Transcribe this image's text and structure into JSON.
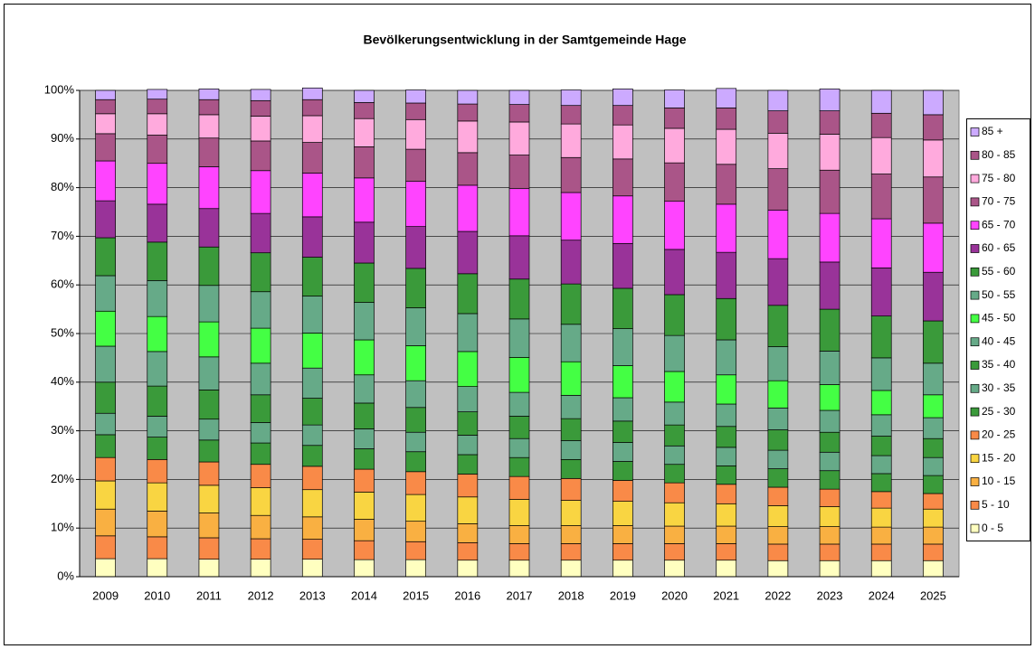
{
  "chart_data": {
    "type": "stacked_bar_percent",
    "title": "Bevölkerungsentwicklung in der Samtgemeinde Hage",
    "categories": [
      "2009",
      "2010",
      "2011",
      "2012",
      "2013",
      "2014",
      "2015",
      "2016",
      "2017",
      "2018",
      "2019",
      "2020",
      "2021",
      "2022",
      "2023",
      "2024",
      "2025"
    ],
    "ylim": [
      0,
      100
    ],
    "yticks": [
      {
        "value": 0,
        "label": "0%"
      },
      {
        "value": 10,
        "label": "10%"
      },
      {
        "value": 20,
        "label": "20%"
      },
      {
        "value": 30,
        "label": "30%"
      },
      {
        "value": 40,
        "label": "40%"
      },
      {
        "value": 50,
        "label": "50%"
      },
      {
        "value": 60,
        "label": "60%"
      },
      {
        "value": 70,
        "label": "70%"
      },
      {
        "value": 80,
        "label": "80%"
      },
      {
        "value": 90,
        "label": "90%"
      },
      {
        "value": 100,
        "label": "100%"
      }
    ],
    "grid": true,
    "legend": "right",
    "series": [
      {
        "name": "0 - 5",
        "color": "#ffffc0",
        "values": [
          3.7,
          3.7,
          3.6,
          3.6,
          3.6,
          3.5,
          3.5,
          3.4,
          3.4,
          3.4,
          3.4,
          3.4,
          3.4,
          3.3,
          3.3,
          3.3,
          3.3
        ]
      },
      {
        "name": "5 - 10",
        "color": "#f98a48",
        "values": [
          4.7,
          4.5,
          4.4,
          4.2,
          4.1,
          3.9,
          3.7,
          3.6,
          3.4,
          3.4,
          3.4,
          3.4,
          3.4,
          3.4,
          3.4,
          3.4,
          3.4
        ]
      },
      {
        "name": "10 - 15",
        "color": "#f9b042",
        "values": [
          5.5,
          5.3,
          5.1,
          4.8,
          4.6,
          4.4,
          4.2,
          3.9,
          3.7,
          3.7,
          3.7,
          3.6,
          3.6,
          3.6,
          3.6,
          3.5,
          3.5
        ]
      },
      {
        "name": "15 - 20",
        "color": "#f9d542",
        "values": [
          5.8,
          5.8,
          5.7,
          5.7,
          5.6,
          5.6,
          5.5,
          5.5,
          5.4,
          5.2,
          5.0,
          4.8,
          4.6,
          4.3,
          4.1,
          3.9,
          3.7
        ]
      },
      {
        "name": "20 - 25",
        "color": "#f98a48",
        "values": [
          4.8,
          4.8,
          4.8,
          4.8,
          4.8,
          4.7,
          4.7,
          4.7,
          4.7,
          4.5,
          4.3,
          4.1,
          4.0,
          3.8,
          3.6,
          3.4,
          3.2
        ]
      },
      {
        "name": "25 - 30",
        "color": "#3a9a3a",
        "values": [
          4.7,
          4.6,
          4.5,
          4.4,
          4.3,
          4.2,
          4.1,
          4.0,
          3.9,
          3.9,
          3.9,
          3.8,
          3.8,
          3.8,
          3.8,
          3.7,
          3.7
        ]
      },
      {
        "name": "30 - 35",
        "color": "#66aa88",
        "values": [
          4.4,
          4.3,
          4.3,
          4.2,
          4.2,
          4.1,
          4.0,
          4.0,
          3.9,
          3.9,
          3.9,
          3.8,
          3.8,
          3.8,
          3.8,
          3.7,
          3.7
        ]
      },
      {
        "name": "35 - 40",
        "color": "#3a9a3a",
        "values": [
          6.4,
          6.2,
          6.0,
          5.7,
          5.5,
          5.3,
          5.1,
          4.8,
          4.6,
          4.5,
          4.4,
          4.3,
          4.3,
          4.2,
          4.1,
          4.0,
          3.9
        ]
      },
      {
        "name": "40 - 45",
        "color": "#66aa88",
        "values": [
          7.4,
          7.1,
          6.8,
          6.5,
          6.2,
          5.8,
          5.5,
          5.2,
          4.9,
          4.8,
          4.8,
          4.7,
          4.6,
          4.5,
          4.5,
          4.4,
          4.3
        ]
      },
      {
        "name": "45 - 50",
        "color": "#44ff44",
        "values": [
          7.2,
          7.2,
          7.2,
          7.2,
          7.2,
          7.2,
          7.2,
          7.2,
          7.2,
          6.9,
          6.6,
          6.3,
          6.0,
          5.6,
          5.3,
          5.0,
          4.7
        ]
      },
      {
        "name": "50 - 55",
        "color": "#66aa88",
        "values": [
          7.3,
          7.4,
          7.5,
          7.5,
          7.6,
          7.7,
          7.8,
          7.8,
          7.9,
          7.7,
          7.6,
          7.4,
          7.2,
          7.0,
          6.9,
          6.7,
          6.5
        ]
      },
      {
        "name": "55 - 60",
        "color": "#3a9a3a",
        "values": [
          7.8,
          7.9,
          7.9,
          8.0,
          8.0,
          8.1,
          8.1,
          8.2,
          8.2,
          8.3,
          8.3,
          8.4,
          8.5,
          8.5,
          8.6,
          8.6,
          8.7
        ]
      },
      {
        "name": "60 - 65",
        "color": "#993399",
        "values": [
          7.6,
          7.8,
          7.9,
          8.1,
          8.3,
          8.4,
          8.6,
          8.7,
          8.9,
          9.0,
          9.2,
          9.3,
          9.5,
          9.6,
          9.7,
          9.9,
          10.0
        ]
      },
      {
        "name": "65 - 70",
        "color": "#ff44ff",
        "values": [
          8.2,
          8.4,
          8.6,
          8.8,
          9.0,
          9.1,
          9.3,
          9.5,
          9.7,
          9.8,
          9.8,
          9.9,
          9.9,
          10.0,
          10.0,
          10.1,
          10.1
        ]
      },
      {
        "name": "70 - 75",
        "color": "#aa5588",
        "values": [
          5.6,
          5.8,
          5.9,
          6.1,
          6.3,
          6.4,
          6.6,
          6.7,
          6.9,
          7.2,
          7.6,
          7.9,
          8.2,
          8.5,
          8.9,
          9.2,
          9.5
        ]
      },
      {
        "name": "75 - 80",
        "color": "#ffaadd",
        "values": [
          4.1,
          4.4,
          4.8,
          5.1,
          5.5,
          5.8,
          6.1,
          6.5,
          6.8,
          6.9,
          7.0,
          7.1,
          7.2,
          7.3,
          7.4,
          7.5,
          7.6
        ]
      },
      {
        "name": "80 - 85",
        "color": "#aa5588",
        "values": [
          2.9,
          3.0,
          3.1,
          3.2,
          3.3,
          3.3,
          3.4,
          3.5,
          3.6,
          3.8,
          4.0,
          4.2,
          4.4,
          4.6,
          4.8,
          5.0,
          5.2
        ]
      },
      {
        "name": "85 +",
        "color": "#ccaaff",
        "values": [
          1.9,
          2.0,
          2.2,
          2.3,
          2.4,
          2.5,
          2.7,
          2.8,
          2.9,
          3.2,
          3.4,
          3.7,
          4.0,
          4.2,
          4.5,
          4.7,
          5.0
        ]
      }
    ]
  }
}
